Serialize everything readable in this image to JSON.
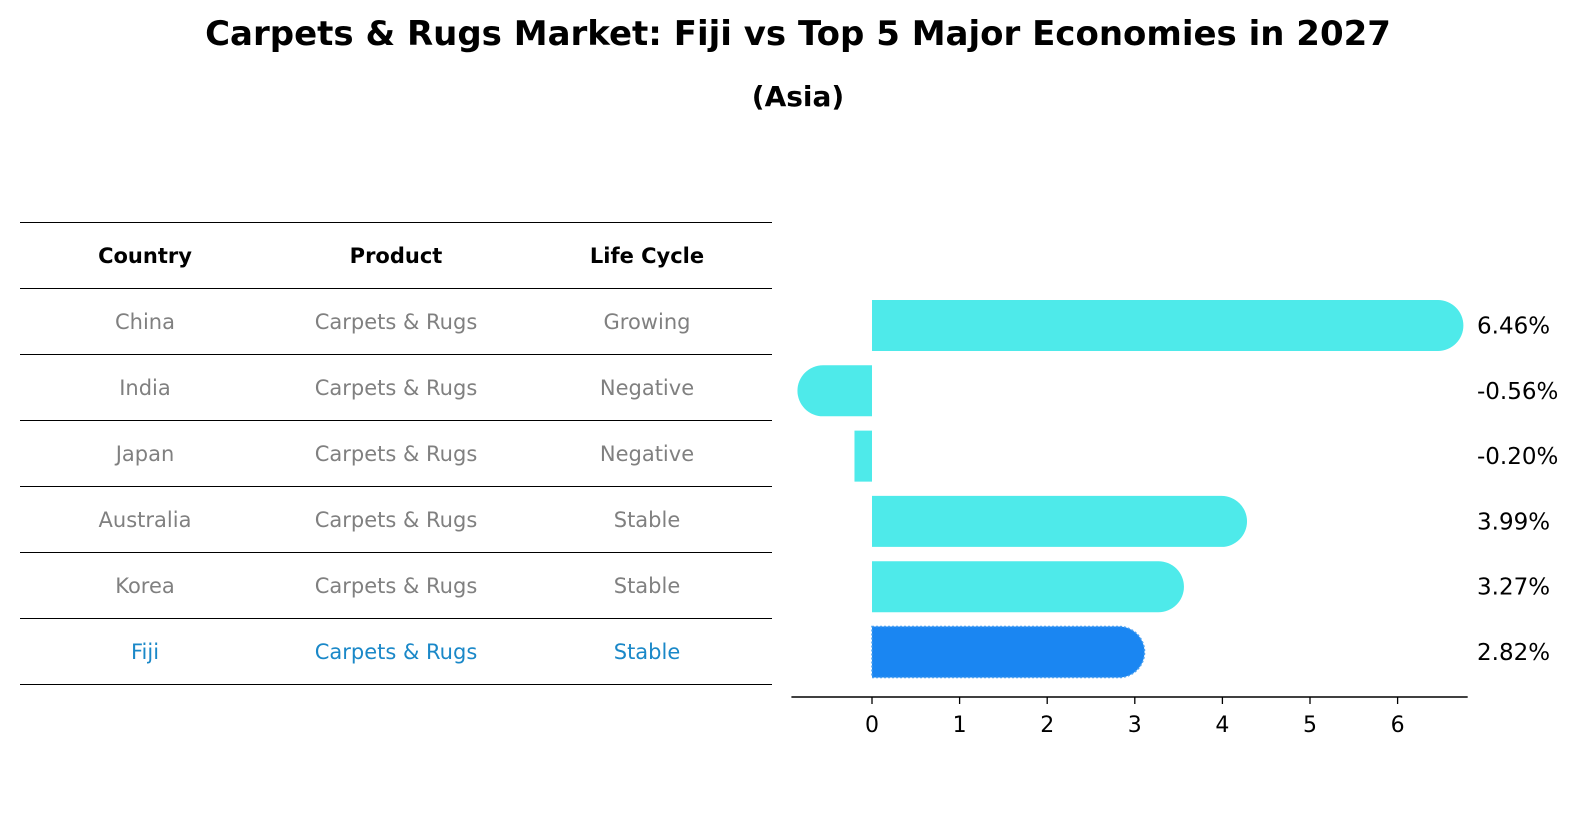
{
  "title": "Carpets & Rugs Market: Fiji vs Top 5 Major Economies in 2027",
  "subtitle": "(Asia)",
  "table": {
    "headers": [
      "Country",
      "Product",
      "Life Cycle"
    ],
    "rows": [
      {
        "country": "China",
        "product": "Carpets & Rugs",
        "life_cycle": "Growing"
      },
      {
        "country": "India",
        "product": "Carpets & Rugs",
        "life_cycle": "Negative"
      },
      {
        "country": "Japan",
        "product": "Carpets & Rugs",
        "life_cycle": "Negative"
      },
      {
        "country": "Australia",
        "product": "Carpets & Rugs",
        "life_cycle": "Stable"
      },
      {
        "country": "Korea",
        "product": "Carpets & Rugs",
        "life_cycle": "Stable"
      },
      {
        "country": "Fiji",
        "product": "Carpets & Rugs",
        "life_cycle": "Stable"
      }
    ]
  },
  "colors": {
    "bar": "#4eeaea",
    "highlight_bar": "#1a86f2",
    "highlight_text": "#1a88c8",
    "muted_text": "#808080"
  },
  "chart_data": {
    "type": "bar",
    "orientation": "horizontal",
    "categories": [
      "China",
      "India",
      "Japan",
      "Australia",
      "Korea",
      "Fiji"
    ],
    "values": [
      6.46,
      -0.56,
      -0.2,
      3.99,
      3.27,
      2.82
    ],
    "value_labels": [
      "6.46%",
      "-0.56%",
      "-0.20%",
      "3.99%",
      "3.27%",
      "2.82%"
    ],
    "highlight": "Fiji",
    "xlim": [
      -0.92,
      6.8
    ],
    "xticks": [
      0,
      1,
      2,
      3,
      4,
      5,
      6
    ],
    "xtick_labels": [
      "0",
      "1",
      "2",
      "3",
      "4",
      "5",
      "6"
    ],
    "xlabel": "",
    "ylabel": "",
    "grid": false
  }
}
